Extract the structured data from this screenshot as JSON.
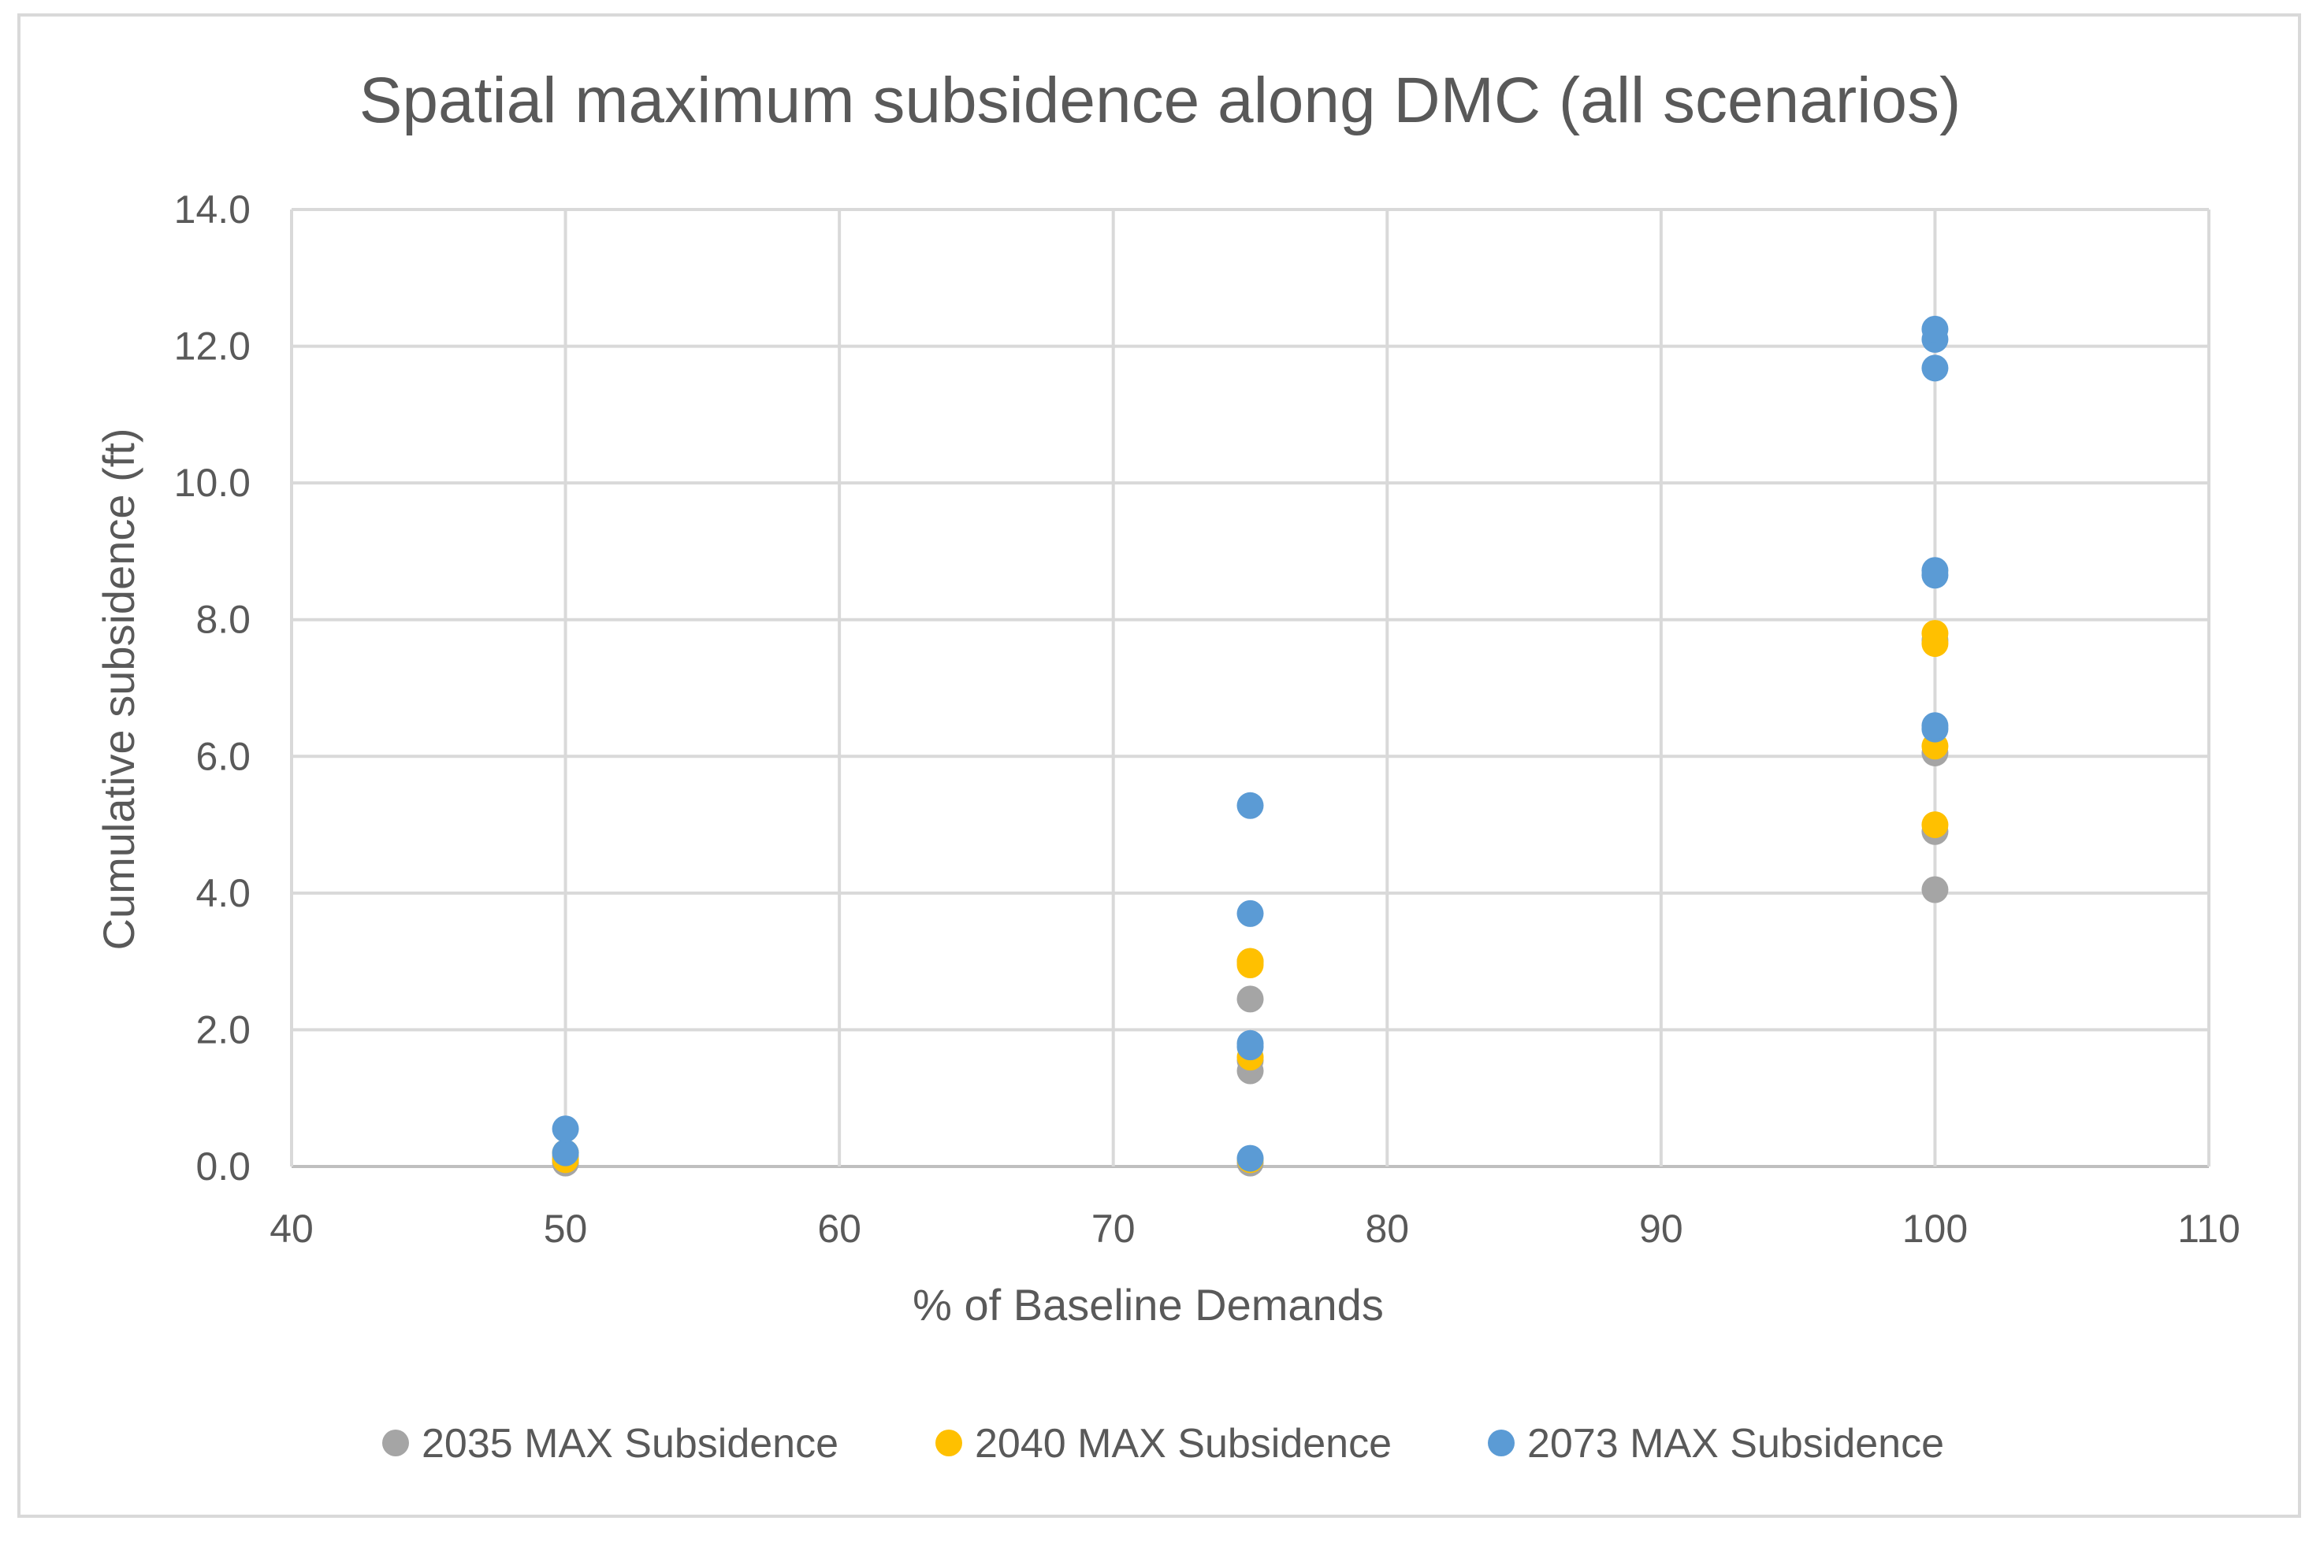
{
  "chart_data": {
    "type": "scatter",
    "title": "Spatial maximum subsidence  along DMC (all scenarios)",
    "xlabel": "% of Baseline Demands",
    "ylabel": "Cumulative subsidence (ft)",
    "xlim": [
      40,
      110
    ],
    "ylim": [
      0,
      14
    ],
    "xticks": [
      40,
      50,
      60,
      70,
      80,
      90,
      100,
      110
    ],
    "yticks": [
      0,
      2,
      4,
      6,
      8,
      10,
      12,
      14
    ],
    "x_tick_labels": [
      "40",
      "50",
      "60",
      "70",
      "80",
      "90",
      "100",
      "110"
    ],
    "y_tick_labels": [
      "0.0",
      "2.0",
      "4.0",
      "6.0",
      "8.0",
      "10.0",
      "12.0",
      "14.0"
    ],
    "grid": true,
    "legend_position": "bottom",
    "series": [
      {
        "name": "2035 MAX Subsidence",
        "color": "#a5a5a5",
        "points": [
          [
            50,
            0.05
          ],
          [
            50,
            0.1
          ],
          [
            50,
            0.15
          ],
          [
            75,
            0.05
          ],
          [
            75,
            1.4
          ],
          [
            75,
            1.55
          ],
          [
            75,
            2.45
          ],
          [
            75,
            3.0
          ],
          [
            100,
            4.05
          ],
          [
            100,
            4.9
          ],
          [
            100,
            6.05
          ],
          [
            100,
            7.7
          ]
        ]
      },
      {
        "name": "2040 MAX Subsidence",
        "color": "#ffc000",
        "points": [
          [
            50,
            0.1
          ],
          [
            50,
            0.2
          ],
          [
            75,
            0.1
          ],
          [
            75,
            1.6
          ],
          [
            75,
            2.95
          ],
          [
            75,
            3.0
          ],
          [
            100,
            5.0
          ],
          [
            100,
            6.15
          ],
          [
            100,
            7.65
          ],
          [
            100,
            7.8
          ]
        ]
      },
      {
        "name": "2073 MAX Subsidence",
        "color": "#5b9bd5",
        "points": [
          [
            50,
            0.2
          ],
          [
            50,
            0.55
          ],
          [
            75,
            0.12
          ],
          [
            75,
            1.75
          ],
          [
            75,
            1.8
          ],
          [
            75,
            3.7
          ],
          [
            75,
            5.28
          ],
          [
            100,
            6.4
          ],
          [
            100,
            6.45
          ],
          [
            100,
            8.65
          ],
          [
            100,
            8.72
          ],
          [
            100,
            11.68
          ],
          [
            100,
            12.1
          ],
          [
            100,
            12.25
          ]
        ]
      }
    ]
  }
}
